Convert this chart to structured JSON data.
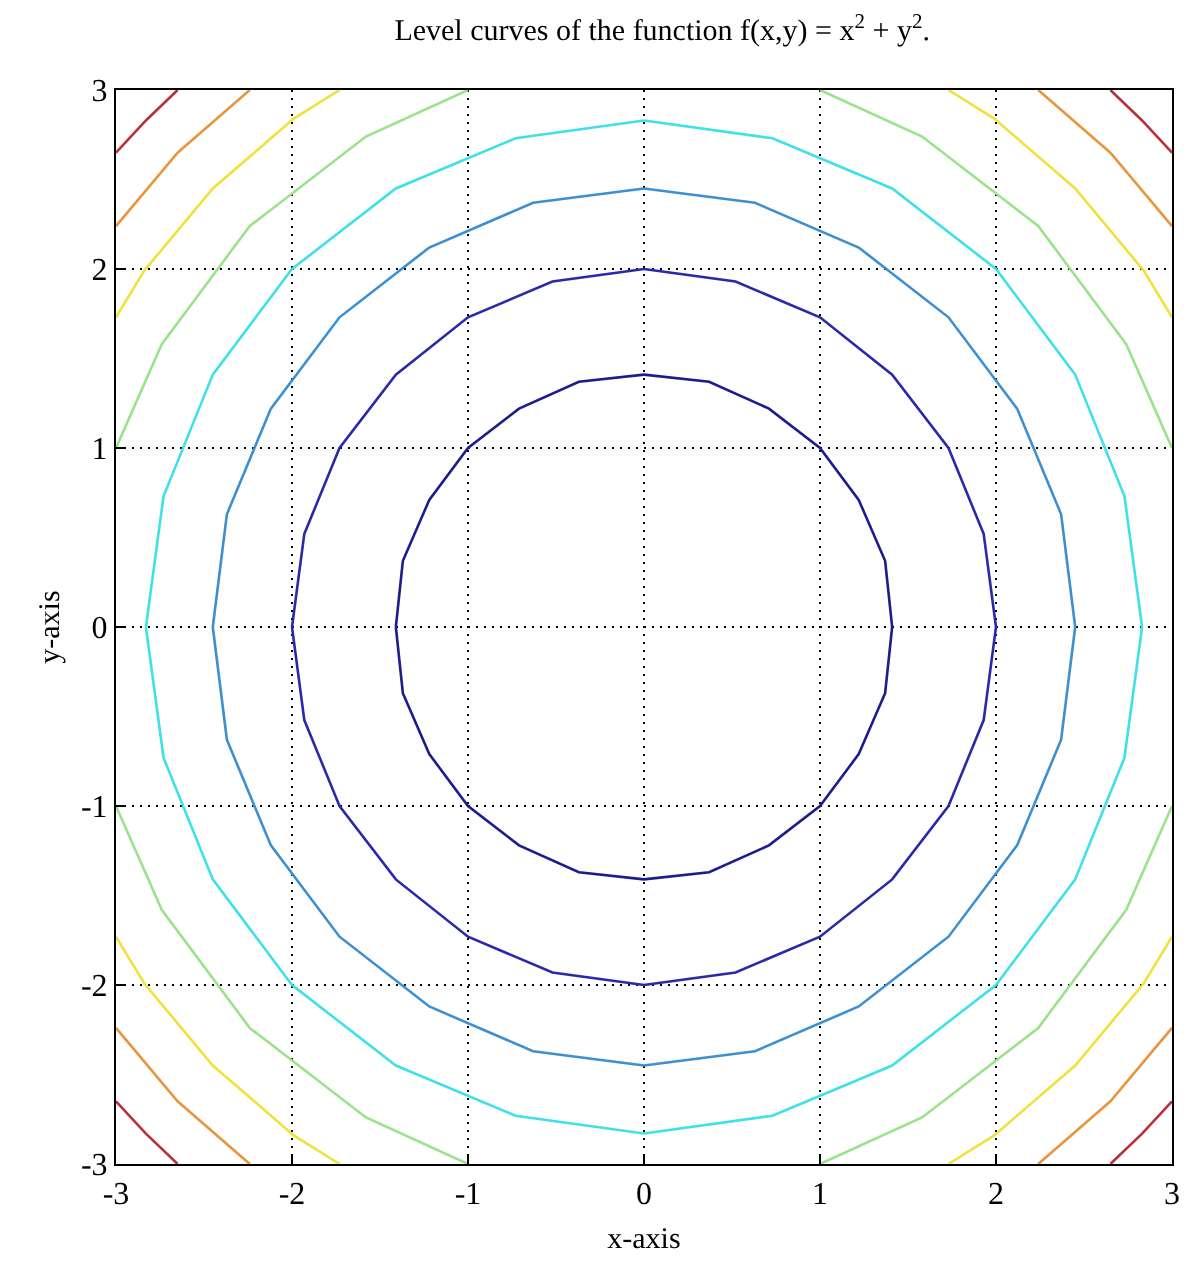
{
  "chart_data": {
    "type": "line",
    "title": "Level curves of the function f(x,y) = x$^{2}$ + y$^{2}$.",
    "xlabel": "x-axis",
    "ylabel": "y-axis",
    "xlim": [
      -3,
      3
    ],
    "ylim": [
      -3,
      3
    ],
    "xticks": [
      -3,
      -2,
      -1,
      0,
      1,
      2,
      3
    ],
    "yticks": [
      -3,
      -2,
      -1,
      0,
      1,
      2,
      3
    ],
    "grid": true,
    "marker": "none",
    "line_style": "solid",
    "series": [
      {
        "color": "#1c1c8c",
        "x": [
          1.41,
          1.37,
          1.22,
          1.0,
          0.71,
          0.37,
          0,
          null,
          0,
          -0.37,
          -0.71,
          -1.0,
          -1.22,
          -1.37,
          -1.41,
          null,
          -1.41,
          -1.37,
          -1.22,
          -1.0,
          -0.71,
          -0.37,
          0,
          null,
          0,
          0.37,
          0.71,
          1.0,
          1.22,
          1.37,
          1.41
        ],
        "values": [
          0,
          0.37,
          0.71,
          1.0,
          1.22,
          1.37,
          1.41,
          null,
          1.41,
          1.37,
          1.22,
          1.0,
          0.71,
          0.37,
          0,
          null,
          0,
          -0.37,
          -0.71,
          -1.0,
          -1.22,
          -1.37,
          -1.41,
          null,
          -1.41,
          -1.37,
          -1.22,
          -1.0,
          -0.71,
          -0.37,
          0
        ]
      },
      {
        "color": "#2a2aa8",
        "x": [
          2,
          1.93,
          1.73,
          1.41,
          1,
          0.52,
          0,
          null,
          0,
          -0.52,
          -1,
          -1.41,
          -1.73,
          -1.93,
          -2,
          null,
          -2,
          -1.93,
          -1.73,
          -1.41,
          -1,
          -0.52,
          0,
          null,
          0,
          0.52,
          1,
          1.41,
          1.73,
          1.93,
          2
        ],
        "values": [
          0,
          0.52,
          1,
          1.41,
          1.73,
          1.93,
          2,
          null,
          2,
          1.93,
          1.73,
          1.41,
          1,
          0.52,
          0,
          null,
          0,
          -0.52,
          -1,
          -1.41,
          -1.73,
          -1.93,
          -2,
          null,
          -2,
          -1.93,
          -1.73,
          -1.41,
          -1,
          -0.52,
          0
        ]
      },
      {
        "color": "#3d8fd1",
        "x": [
          2.45,
          2.37,
          2.12,
          1.73,
          1.22,
          0.63,
          0,
          null,
          0,
          -0.63,
          -1.22,
          -1.73,
          -2.12,
          -2.37,
          -2.45,
          null,
          -2.45,
          -2.37,
          -2.12,
          -1.73,
          -1.22,
          -0.63,
          0,
          null,
          0,
          0.63,
          1.22,
          1.73,
          2.12,
          2.37,
          2.45
        ],
        "values": [
          0,
          0.63,
          1.22,
          1.73,
          2.12,
          2.37,
          2.45,
          null,
          2.45,
          2.37,
          2.12,
          1.73,
          1.22,
          0.63,
          0,
          null,
          0,
          -0.63,
          -1.22,
          -1.73,
          -2.12,
          -2.37,
          -2.45,
          null,
          -2.45,
          -2.37,
          -2.12,
          -1.73,
          -1.22,
          -0.63,
          0
        ]
      },
      {
        "color": "#3fe0e8",
        "x": [
          2.83,
          2.73,
          2.45,
          2,
          1.41,
          0.73,
          0,
          null,
          0,
          -0.73,
          -1.41,
          -2,
          -2.45,
          -2.73,
          -2.83,
          null,
          -2.83,
          -2.73,
          -2.45,
          -2,
          -1.41,
          -0.73,
          0,
          null,
          0,
          0.73,
          1.41,
          2,
          2.45,
          2.73,
          2.83
        ],
        "values": [
          0,
          0.73,
          1.41,
          2,
          2.45,
          2.73,
          2.83,
          null,
          2.83,
          2.73,
          2.45,
          2,
          1.41,
          0.73,
          0,
          null,
          0,
          -0.73,
          -1.41,
          -2,
          -2.45,
          -2.73,
          -2.83,
          null,
          -2.83,
          -2.73,
          -2.45,
          -2,
          -1.41,
          -0.73,
          0
        ]
      },
      {
        "color": "#9be38a",
        "x": [
          3,
          2.74,
          2.24,
          1.58,
          1,
          null,
          -3,
          -2.74,
          -2.24,
          -1.58,
          -1,
          null,
          -3,
          -2.74,
          -2.24,
          -1.58,
          -1,
          null,
          3,
          2.74,
          2.24,
          1.58,
          1
        ],
        "values": [
          1,
          1.58,
          2.24,
          2.74,
          3,
          null,
          1,
          1.58,
          2.24,
          2.74,
          3,
          null,
          -1,
          -1.58,
          -2.24,
          -2.74,
          -3,
          null,
          -1,
          -1.58,
          -2.24,
          -2.74,
          -3
        ]
      },
      {
        "color": "#f2e03c",
        "x": [
          3,
          2.84,
          2.45,
          1.99,
          1.73,
          null,
          -3,
          -2.84,
          -2.45,
          -1.99,
          -1.73,
          null,
          -3,
          -2.84,
          -2.45,
          -1.99,
          -1.73,
          null,
          3,
          2.84,
          2.45,
          1.99,
          1.73
        ],
        "values": [
          1.73,
          1.99,
          2.45,
          2.84,
          3,
          null,
          1.73,
          1.99,
          2.45,
          2.84,
          3,
          null,
          -1.73,
          -1.99,
          -2.45,
          -2.84,
          -3,
          null,
          -1.73,
          -1.99,
          -2.45,
          -2.84,
          -3
        ]
      },
      {
        "color": "#e8963c",
        "x": [
          3,
          2.65,
          2.24,
          null,
          -3,
          -2.65,
          -2.24,
          null,
          -3,
          -2.65,
          -2.24,
          null,
          3,
          2.65,
          2.24
        ],
        "values": [
          2.24,
          2.65,
          3,
          null,
          2.24,
          2.65,
          3,
          null,
          -2.24,
          -2.65,
          -3,
          null,
          -2.24,
          -2.65,
          -3
        ]
      },
      {
        "color": "#b8303c",
        "x": [
          3,
          2.83,
          2.65,
          null,
          -3,
          -2.83,
          -2.65,
          null,
          -3,
          -2.83,
          -2.65,
          null,
          3,
          2.83,
          2.65
        ],
        "values": [
          2.65,
          2.83,
          3,
          null,
          2.65,
          2.83,
          3,
          null,
          -2.65,
          -2.83,
          -3,
          null,
          -2.65,
          -2.83,
          -3
        ]
      }
    ]
  }
}
